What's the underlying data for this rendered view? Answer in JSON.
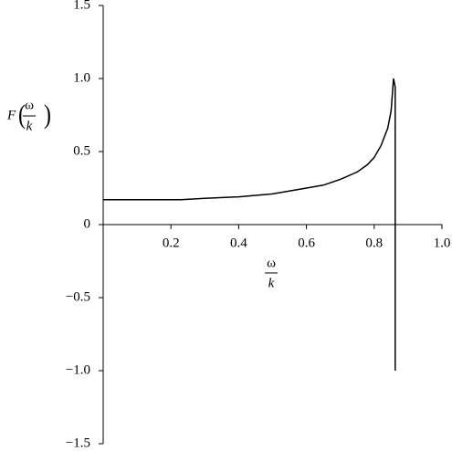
{
  "chart_data": {
    "type": "line",
    "xlabel": {
      "numerator": "ω",
      "denominator": "k"
    },
    "ylabel": {
      "function": "F",
      "numerator": "ω",
      "denominator": "k"
    },
    "x": [
      0,
      0.1,
      0.2,
      0.23,
      0.3,
      0.4,
      0.5,
      0.6,
      0.65,
      0.7,
      0.75,
      0.78,
      0.8,
      0.82,
      0.84,
      0.85,
      0.857,
      0.862,
      0.862
    ],
    "series": [
      {
        "color": "#000000",
        "values": [
          0.17,
          0.17,
          0.17,
          0.17,
          0.18,
          0.19,
          0.21,
          0.25,
          0.27,
          0.31,
          0.36,
          0.41,
          0.46,
          0.54,
          0.66,
          0.78,
          1.0,
          0.94,
          -1.0
        ]
      }
    ],
    "xlim": [
      0,
      1.0
    ],
    "xticks": [
      0.2,
      0.4,
      0.6,
      0.8,
      {
        "value": 1.0,
        "label": "1.0"
      }
    ],
    "ylim": [
      -1.5,
      1.5
    ],
    "yticks": [
      {
        "value": -1.5,
        "label": "−1.5"
      },
      {
        "value": -1.0,
        "label": "−1.0"
      },
      {
        "value": -0.5,
        "label": "−0.5"
      },
      0,
      0.5,
      {
        "value": 1.0,
        "label": "1.0"
      },
      1.5
    ]
  }
}
